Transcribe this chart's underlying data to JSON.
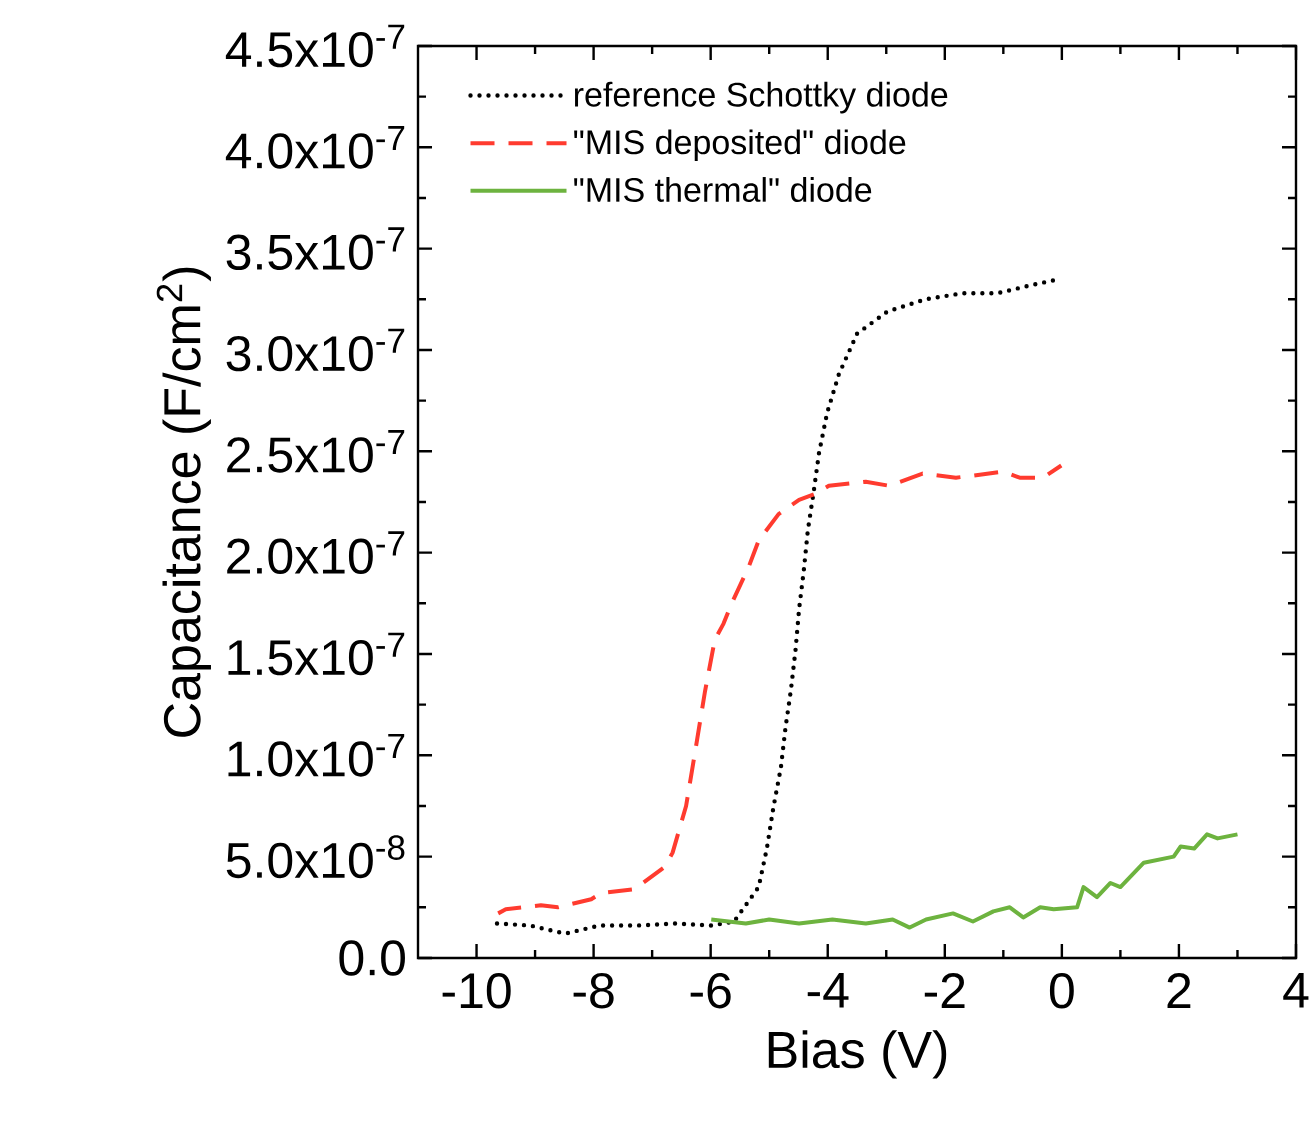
{
  "chart_data": {
    "type": "line",
    "xlabel": "Bias (V)",
    "ylabel": "Capacitance (F/cm$^{2}$)",
    "xlim": [
      -11,
      4
    ],
    "xticks": [
      -10,
      -8,
      -6,
      -4,
      -2,
      0,
      2,
      4
    ],
    "ylim": [
      0,
      4.5e-07
    ],
    "yticks": [
      {
        "value": 0,
        "label": "0.0"
      },
      {
        "value": 5e-08,
        "label": "5.0x10$^{-8}$"
      },
      {
        "value": 1e-07,
        "label": "1.0x10$^{-7}$"
      },
      {
        "value": 1.5e-07,
        "label": "1.5x10$^{-7}$"
      },
      {
        "value": 2e-07,
        "label": "2.0x10$^{-7}$"
      },
      {
        "value": 2.5e-07,
        "label": "2.5x10$^{-7}$"
      },
      {
        "value": 3e-07,
        "label": "3.0x10$^{-7}$"
      },
      {
        "value": 3.5e-07,
        "label": "3.5x10$^{-7}$"
      },
      {
        "value": 4e-07,
        "label": "4.0x10$^{-7}$"
      },
      {
        "value": 4.5e-07,
        "label": "4.5x10$^{-7}$"
      }
    ],
    "legend": "top left",
    "marker": "none",
    "grid": false,
    "series": [
      {
        "name": "reference Schottky diode",
        "color": "#000000",
        "line_style": "dotted",
        "x": [
          -9.65,
          -9.08,
          -8.49,
          -7.9,
          -7.27,
          -6.61,
          -5.98,
          -5.6,
          -5.18,
          -5.04,
          -4.93,
          -4.8,
          -4.72,
          -4.63,
          -4.55,
          -4.49,
          -4.41,
          -4.34,
          -4.24,
          -4.15,
          -4.01,
          -3.81,
          -3.5,
          -2.98,
          -2.33,
          -1.7,
          -1.1,
          -0.52,
          -0.04
        ],
        "values": [
          1.7e-08,
          1.6e-08,
          1.2e-08,
          1.6e-08,
          1.6e-08,
          1.7e-08,
          1.6e-08,
          1.8e-08,
          3.5e-08,
          5.4e-08,
          7.4e-08,
          9.4e-08,
          1.14e-07,
          1.32e-07,
          1.52e-07,
          1.72e-07,
          1.91e-07,
          2.11e-07,
          2.3e-07,
          2.49e-07,
          2.69e-07,
          2.88e-07,
          3.08e-07,
          3.19e-07,
          3.25e-07,
          3.28e-07,
          3.28e-07,
          3.32e-07,
          3.35e-07
        ]
      },
      {
        "name": "\"MIS deposited\" diode",
        "color": "#ff3b2f",
        "line_style": "dashed",
        "x": [
          -9.63,
          -9.5,
          -8.9,
          -8.61,
          -8.04,
          -7.87,
          -7.3,
          -6.78,
          -6.65,
          -6.42,
          -6.27,
          -6.1,
          -5.93,
          -5.78,
          -5.64,
          -5.35,
          -5.18,
          -4.84,
          -4.49,
          -4.21,
          -3.98,
          -3.35,
          -2.95,
          -2.38,
          -1.81,
          -1.52,
          -1.01,
          -0.72,
          -0.32,
          -0.01
        ],
        "values": [
          2.2e-08,
          2.4e-08,
          2.6e-08,
          2.5e-08,
          2.9e-08,
          3.2e-08,
          3.4e-08,
          4.5e-08,
          5.2e-08,
          7.5e-08,
          1.01e-07,
          1.31e-07,
          1.57e-07,
          1.65e-07,
          1.75e-07,
          1.93e-07,
          2.06e-07,
          2.19e-07,
          2.26e-07,
          2.29e-07,
          2.33e-07,
          2.35e-07,
          2.33e-07,
          2.39e-07,
          2.37e-07,
          2.38e-07,
          2.4e-07,
          2.37e-07,
          2.37e-07,
          2.43e-07
        ]
      },
      {
        "name": "\"MIS thermal\" diode",
        "color": "#6db33f",
        "line_style": "solid",
        "x": [
          -5.99,
          -5.4,
          -5.0,
          -4.49,
          -3.92,
          -3.35,
          -2.89,
          -2.6,
          -2.32,
          -1.86,
          -1.52,
          -1.17,
          -0.89,
          -0.66,
          -0.37,
          -0.14,
          0.26,
          0.37,
          0.6,
          0.83,
          1.0,
          1.4,
          1.91,
          2.03,
          2.26,
          2.48,
          2.66,
          3.0
        ],
        "values": [
          1.9e-08,
          1.7e-08,
          1.9e-08,
          1.7e-08,
          1.9e-08,
          1.7e-08,
          1.9e-08,
          1.5e-08,
          1.9e-08,
          2.2e-08,
          1.8e-08,
          2.3e-08,
          2.5e-08,
          2e-08,
          2.5e-08,
          2.4e-08,
          2.5e-08,
          3.5e-08,
          3e-08,
          3.7e-08,
          3.5e-08,
          4.7e-08,
          5e-08,
          5.5e-08,
          5.4e-08,
          6.1e-08,
          5.9e-08,
          6.1e-08
        ]
      }
    ]
  }
}
